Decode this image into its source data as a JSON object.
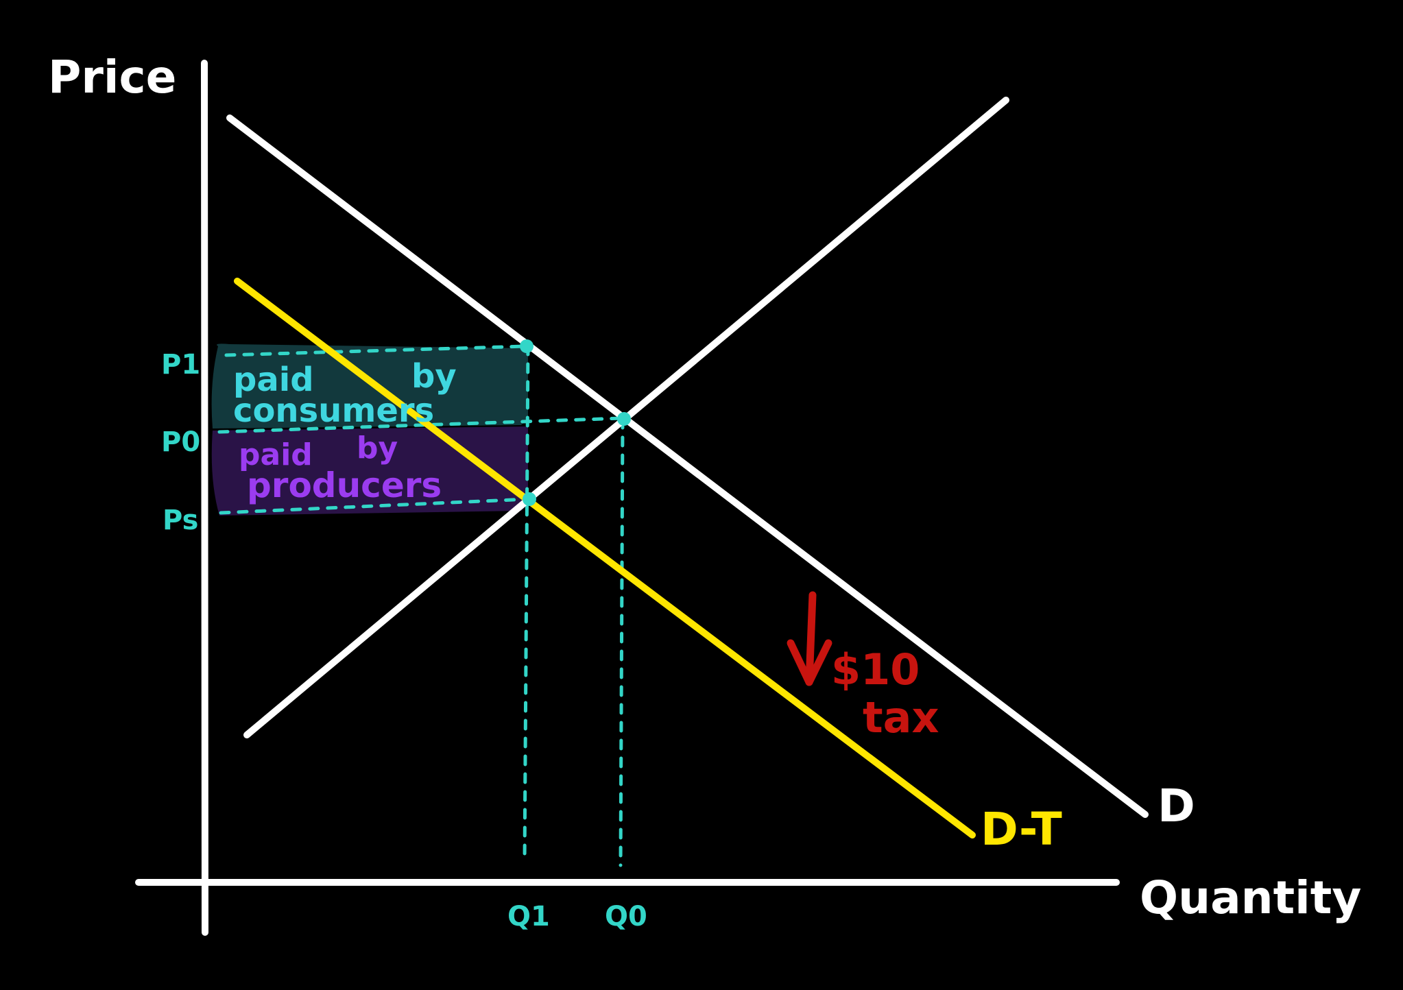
{
  "axes": {
    "y_label": "Price",
    "x_label": "Quantity"
  },
  "curves": {
    "demand_label": "D",
    "taxed_demand_label": "D-T"
  },
  "price_levels": {
    "p1": "P1",
    "p0": "P0",
    "ps": "Ps"
  },
  "quantity_levels": {
    "q1": "Q1",
    "q0": "Q0"
  },
  "regions": {
    "consumers_line1": "paid",
    "consumers_line1b": "by",
    "consumers_line2": "consumers",
    "producers_line1": "paid",
    "producers_line1b": "by",
    "producers_line2": "producers"
  },
  "tax": {
    "amount": "$10",
    "word": "tax"
  },
  "colors": {
    "background": "#000000",
    "axis": "#ffffff",
    "demand": "#ffffff",
    "supply": "#ffffff",
    "taxed_demand": "#ffe600",
    "guide": "#33d6c8",
    "consumer_fill": "#12393d",
    "producer_fill": "#2a1347",
    "consumer_text": "#3fd7e0",
    "producer_text": "#9b3cf0",
    "tax": "#c8140f"
  }
}
